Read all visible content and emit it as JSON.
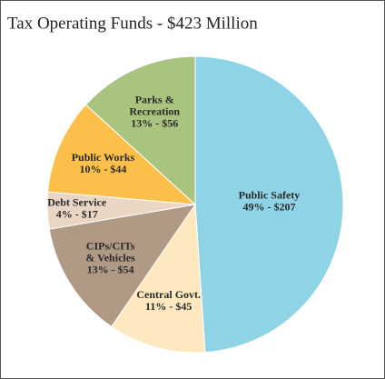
{
  "chart_data": {
    "type": "pie",
    "title": "Tax Operating Funds - $423 Million",
    "categories": [
      "Public Safety",
      "Central Govt.",
      "CIPs/CITs & Vehicles",
      "Debt Service",
      "Public Works",
      "Parks & Recreation"
    ],
    "values": [
      207,
      45,
      54,
      17,
      44,
      56
    ],
    "value_labels": [
      "49% - $207",
      "11% - $45",
      "13% - $54",
      "4% - $17",
      "10% - $44",
      "13% - $56"
    ],
    "colors": [
      "#8fd3e6",
      "#fde8c0",
      "#b09a85",
      "#ead6c4",
      "#fbbf4a",
      "#a9c47f"
    ]
  }
}
